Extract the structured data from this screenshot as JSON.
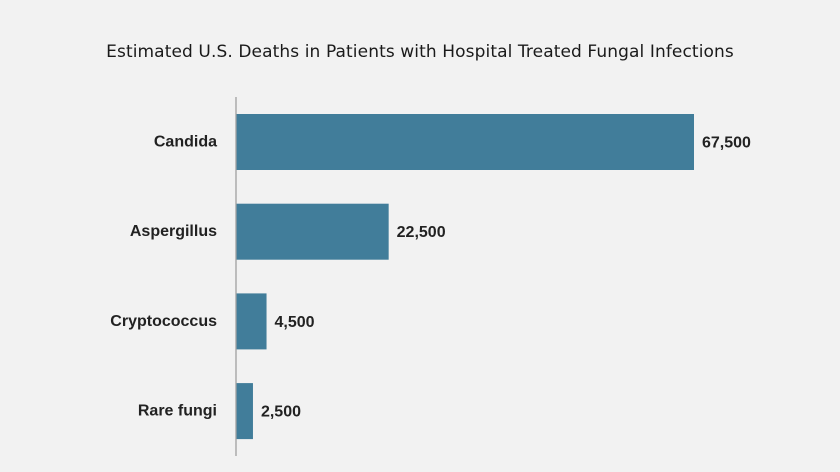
{
  "colors": {
    "background": "#f2f2f2",
    "bar": "#417d9a",
    "axis": "#9a9a9a",
    "text": "#222222"
  },
  "chart_data": {
    "type": "bar",
    "orientation": "horizontal",
    "title": "Estimated U.S. Deaths in Patients with Hospital Treated Fungal Infections",
    "categories": [
      "Candida",
      "Aspergillus",
      "Cryptococcus",
      "Rare fungi"
    ],
    "values": [
      67500,
      22500,
      4500,
      2500
    ],
    "value_labels": [
      "67,500",
      "22,500",
      "4,500",
      "2,500"
    ],
    "xlabel": "",
    "ylabel": "",
    "xlim": [
      0,
      67500
    ],
    "grid": false,
    "legend": "none"
  }
}
